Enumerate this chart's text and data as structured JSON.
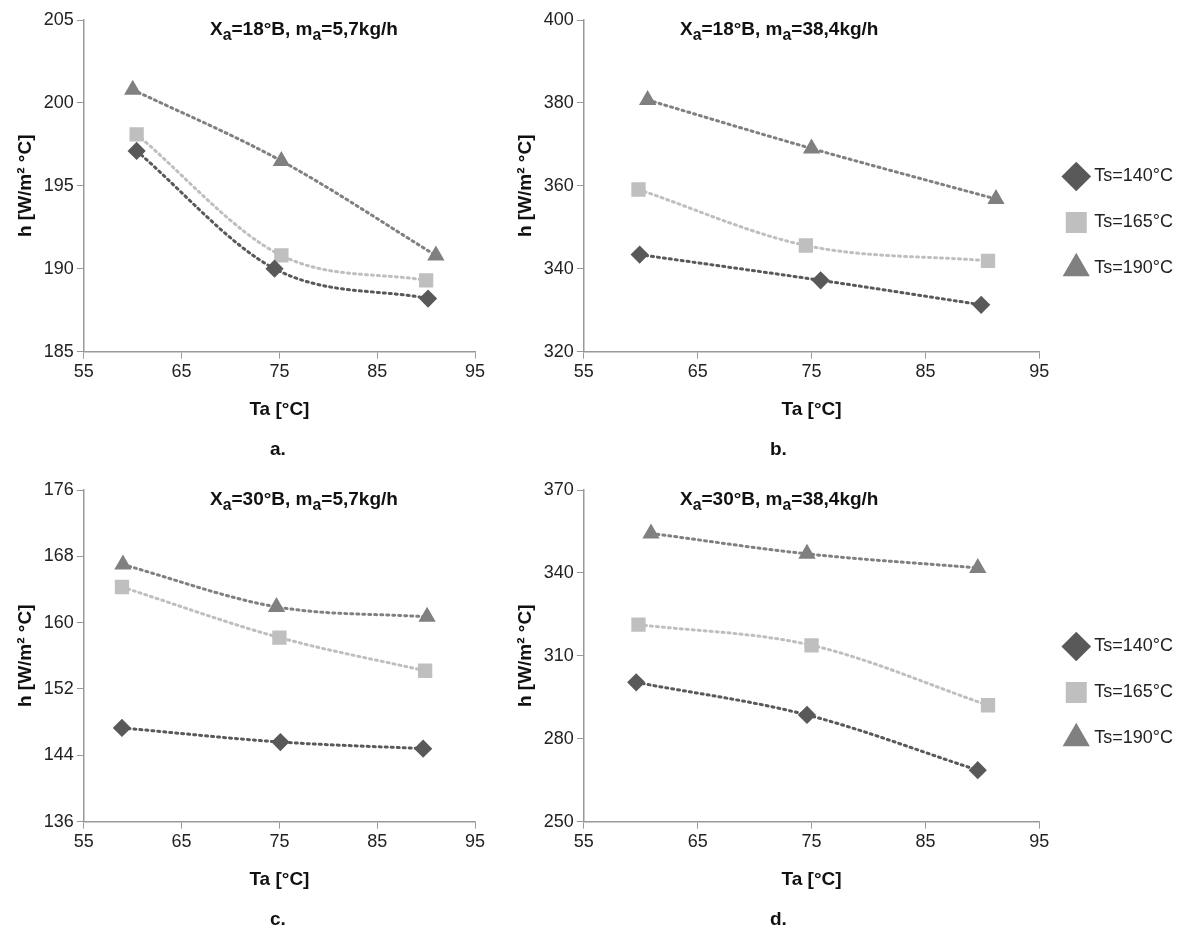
{
  "chart_data": [
    {
      "type": "line",
      "title": "X$_{a}$=18°B, m$_{a}$=5,7kg/h",
      "xlabel": "Ta [°C]",
      "ylabel": "h [W/m² °C]",
      "annotations": [
        "a."
      ],
      "xlim": [
        55,
        95
      ],
      "xticks": [
        55,
        65,
        75,
        85,
        95
      ],
      "ylim": [
        185,
        205
      ],
      "yticks": [
        185,
        190,
        195,
        200,
        205
      ],
      "grid": false,
      "legend": false,
      "line_style": "dotted",
      "series": [
        {
          "color": "#595959",
          "marker": "diamond",
          "x": [
            60.4,
            74.5,
            90.2
          ],
          "values": [
            197.1,
            190.0,
            188.2
          ]
        },
        {
          "color": "#bfbfbf",
          "marker": "square",
          "x": [
            60.4,
            75.2,
            90.0
          ],
          "values": [
            198.1,
            190.8,
            189.3
          ]
        },
        {
          "color": "#808080",
          "marker": "triangle",
          "x": [
            60.0,
            75.2,
            91.0
          ],
          "values": [
            200.8,
            196.5,
            190.8
          ]
        }
      ]
    },
    {
      "type": "line",
      "title": "X$_{a}$=18°B, m$_{a}$=38,4kg/h",
      "xlabel": "Ta [°C]",
      "ylabel": "h [W/m² °C]",
      "annotations": [
        "b."
      ],
      "xlim": [
        55,
        95
      ],
      "xticks": [
        55,
        65,
        75,
        85,
        95
      ],
      "ylim": [
        320,
        400
      ],
      "yticks": [
        320,
        340,
        360,
        380,
        400
      ],
      "grid": false,
      "legend": "right",
      "line_style": "dotted",
      "series": [
        {
          "name": "Ts=140°C",
          "color": "#595959",
          "marker": "diamond",
          "x": [
            59.9,
            75.8,
            89.9
          ],
          "values": [
            343.4,
            337.2,
            331.3
          ]
        },
        {
          "name": "Ts=165°C",
          "color": "#bfbfbf",
          "marker": "square",
          "x": [
            59.8,
            74.5,
            90.5
          ],
          "values": [
            359.1,
            345.6,
            341.9
          ]
        },
        {
          "name": "Ts=190°C",
          "color": "#808080",
          "marker": "triangle",
          "x": [
            60.6,
            75.0,
            91.2
          ],
          "values": [
            380.7,
            369.0,
            356.8
          ]
        }
      ]
    },
    {
      "type": "line",
      "title": "X$_{a}$=30°B, m$_{a}$=5,7kg/h",
      "xlabel": "Ta [°C]",
      "ylabel": "h [W/m² °C]",
      "annotations": [
        "c."
      ],
      "xlim": [
        55,
        95
      ],
      "xticks": [
        55,
        65,
        75,
        85,
        95
      ],
      "ylim": [
        136,
        176
      ],
      "yticks": [
        136,
        144,
        152,
        160,
        168,
        176
      ],
      "grid": false,
      "legend": false,
      "line_style": "dotted",
      "series": [
        {
          "color": "#595959",
          "marker": "diamond",
          "x": [
            58.9,
            75.1,
            89.7
          ],
          "values": [
            147.3,
            145.6,
            144.8
          ]
        },
        {
          "color": "#bfbfbf",
          "marker": "square",
          "x": [
            58.9,
            75.0,
            89.9
          ],
          "values": [
            164.3,
            158.2,
            154.2
          ]
        },
        {
          "color": "#808080",
          "marker": "triangle",
          "x": [
            59.0,
            74.7,
            90.1
          ],
          "values": [
            167.0,
            161.9,
            160.7
          ]
        }
      ]
    },
    {
      "type": "line",
      "title": "X$_{a}$=30°B, m$_{a}$=38,4kg/h",
      "xlabel": "Ta [°C]",
      "ylabel": "h [W/m² °C]",
      "annotations": [
        "d."
      ],
      "xlim": [
        55,
        95
      ],
      "xticks": [
        55,
        65,
        75,
        85,
        95
      ],
      "ylim": [
        250,
        370
      ],
      "yticks": [
        250,
        280,
        310,
        340,
        370
      ],
      "grid": false,
      "legend": "right",
      "line_style": "dotted",
      "series": [
        {
          "name": "Ts=140°C",
          "color": "#595959",
          "marker": "diamond",
          "x": [
            59.6,
            74.6,
            89.6
          ],
          "values": [
            300.4,
            288.6,
            268.6
          ]
        },
        {
          "name": "Ts=165°C",
          "color": "#bfbfbf",
          "marker": "square",
          "x": [
            59.8,
            75.0,
            90.5
          ],
          "values": [
            321.3,
            313.8,
            292.1
          ]
        },
        {
          "name": "Ts=190°C",
          "color": "#808080",
          "marker": "triangle",
          "x": [
            60.9,
            74.6,
            89.6
          ],
          "values": [
            354.3,
            346.9,
            341.8
          ]
        }
      ]
    }
  ]
}
